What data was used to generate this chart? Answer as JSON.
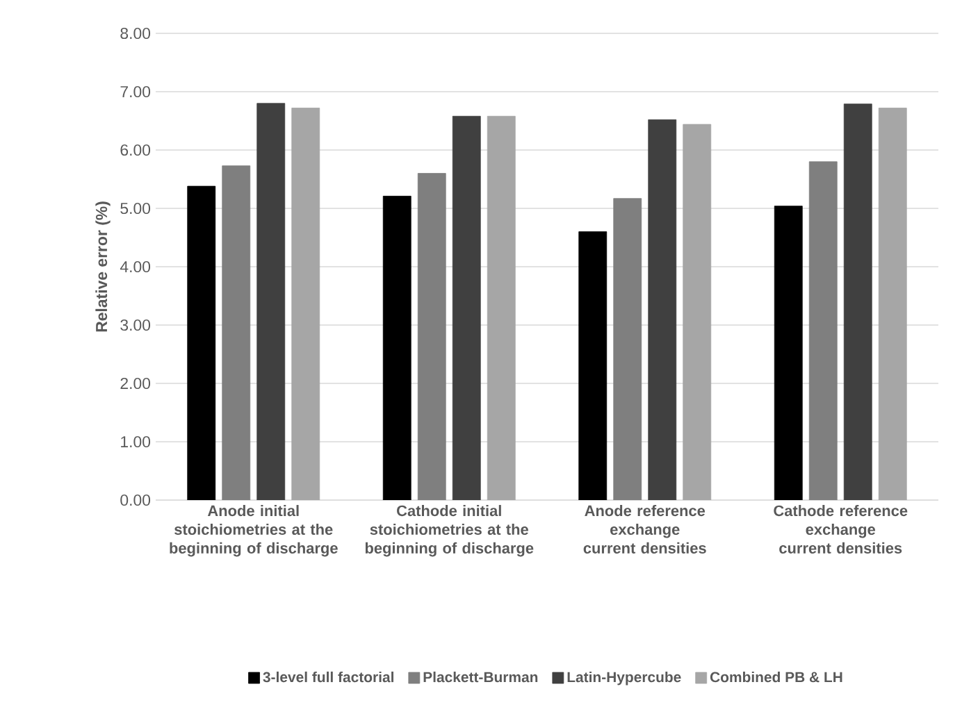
{
  "chart_data": {
    "type": "bar",
    "ylabel": "Relative error (%)",
    "categories": [
      "Anode initial stoichiometries at the beginning of discharge",
      "Cathode initial stoichiometries at the beginning of discharge",
      "Anode reference exchange current densities",
      "Cathode reference exchange current densities"
    ],
    "series": [
      {
        "name": "3-level full factorial",
        "color": "#000000",
        "values": [
          5.38,
          5.21,
          4.6,
          5.04
        ]
      },
      {
        "name": "Plackett-Burman",
        "color": "#7f7f7f",
        "values": [
          5.73,
          5.6,
          5.17,
          5.8
        ]
      },
      {
        "name": "Latin-Hypercube",
        "color": "#404040",
        "values": [
          6.8,
          6.58,
          6.52,
          6.79
        ]
      },
      {
        "name": "Combined PB & LH",
        "color": "#a6a6a6",
        "values": [
          6.72,
          6.58,
          6.44,
          6.72
        ]
      }
    ],
    "ylim": [
      0,
      8
    ],
    "yticks": [
      {
        "value": 0,
        "label": "0.00"
      },
      {
        "value": 1,
        "label": "1.00"
      },
      {
        "value": 2,
        "label": "2.00"
      },
      {
        "value": 3,
        "label": "3.00"
      },
      {
        "value": 4,
        "label": "4.00"
      },
      {
        "value": 5,
        "label": "5.00"
      },
      {
        "value": 6,
        "label": "6.00"
      },
      {
        "value": 7,
        "label": "7.00"
      },
      {
        "value": 8,
        "label": "8.00"
      }
    ],
    "grid": "y",
    "legend": "bottom"
  }
}
